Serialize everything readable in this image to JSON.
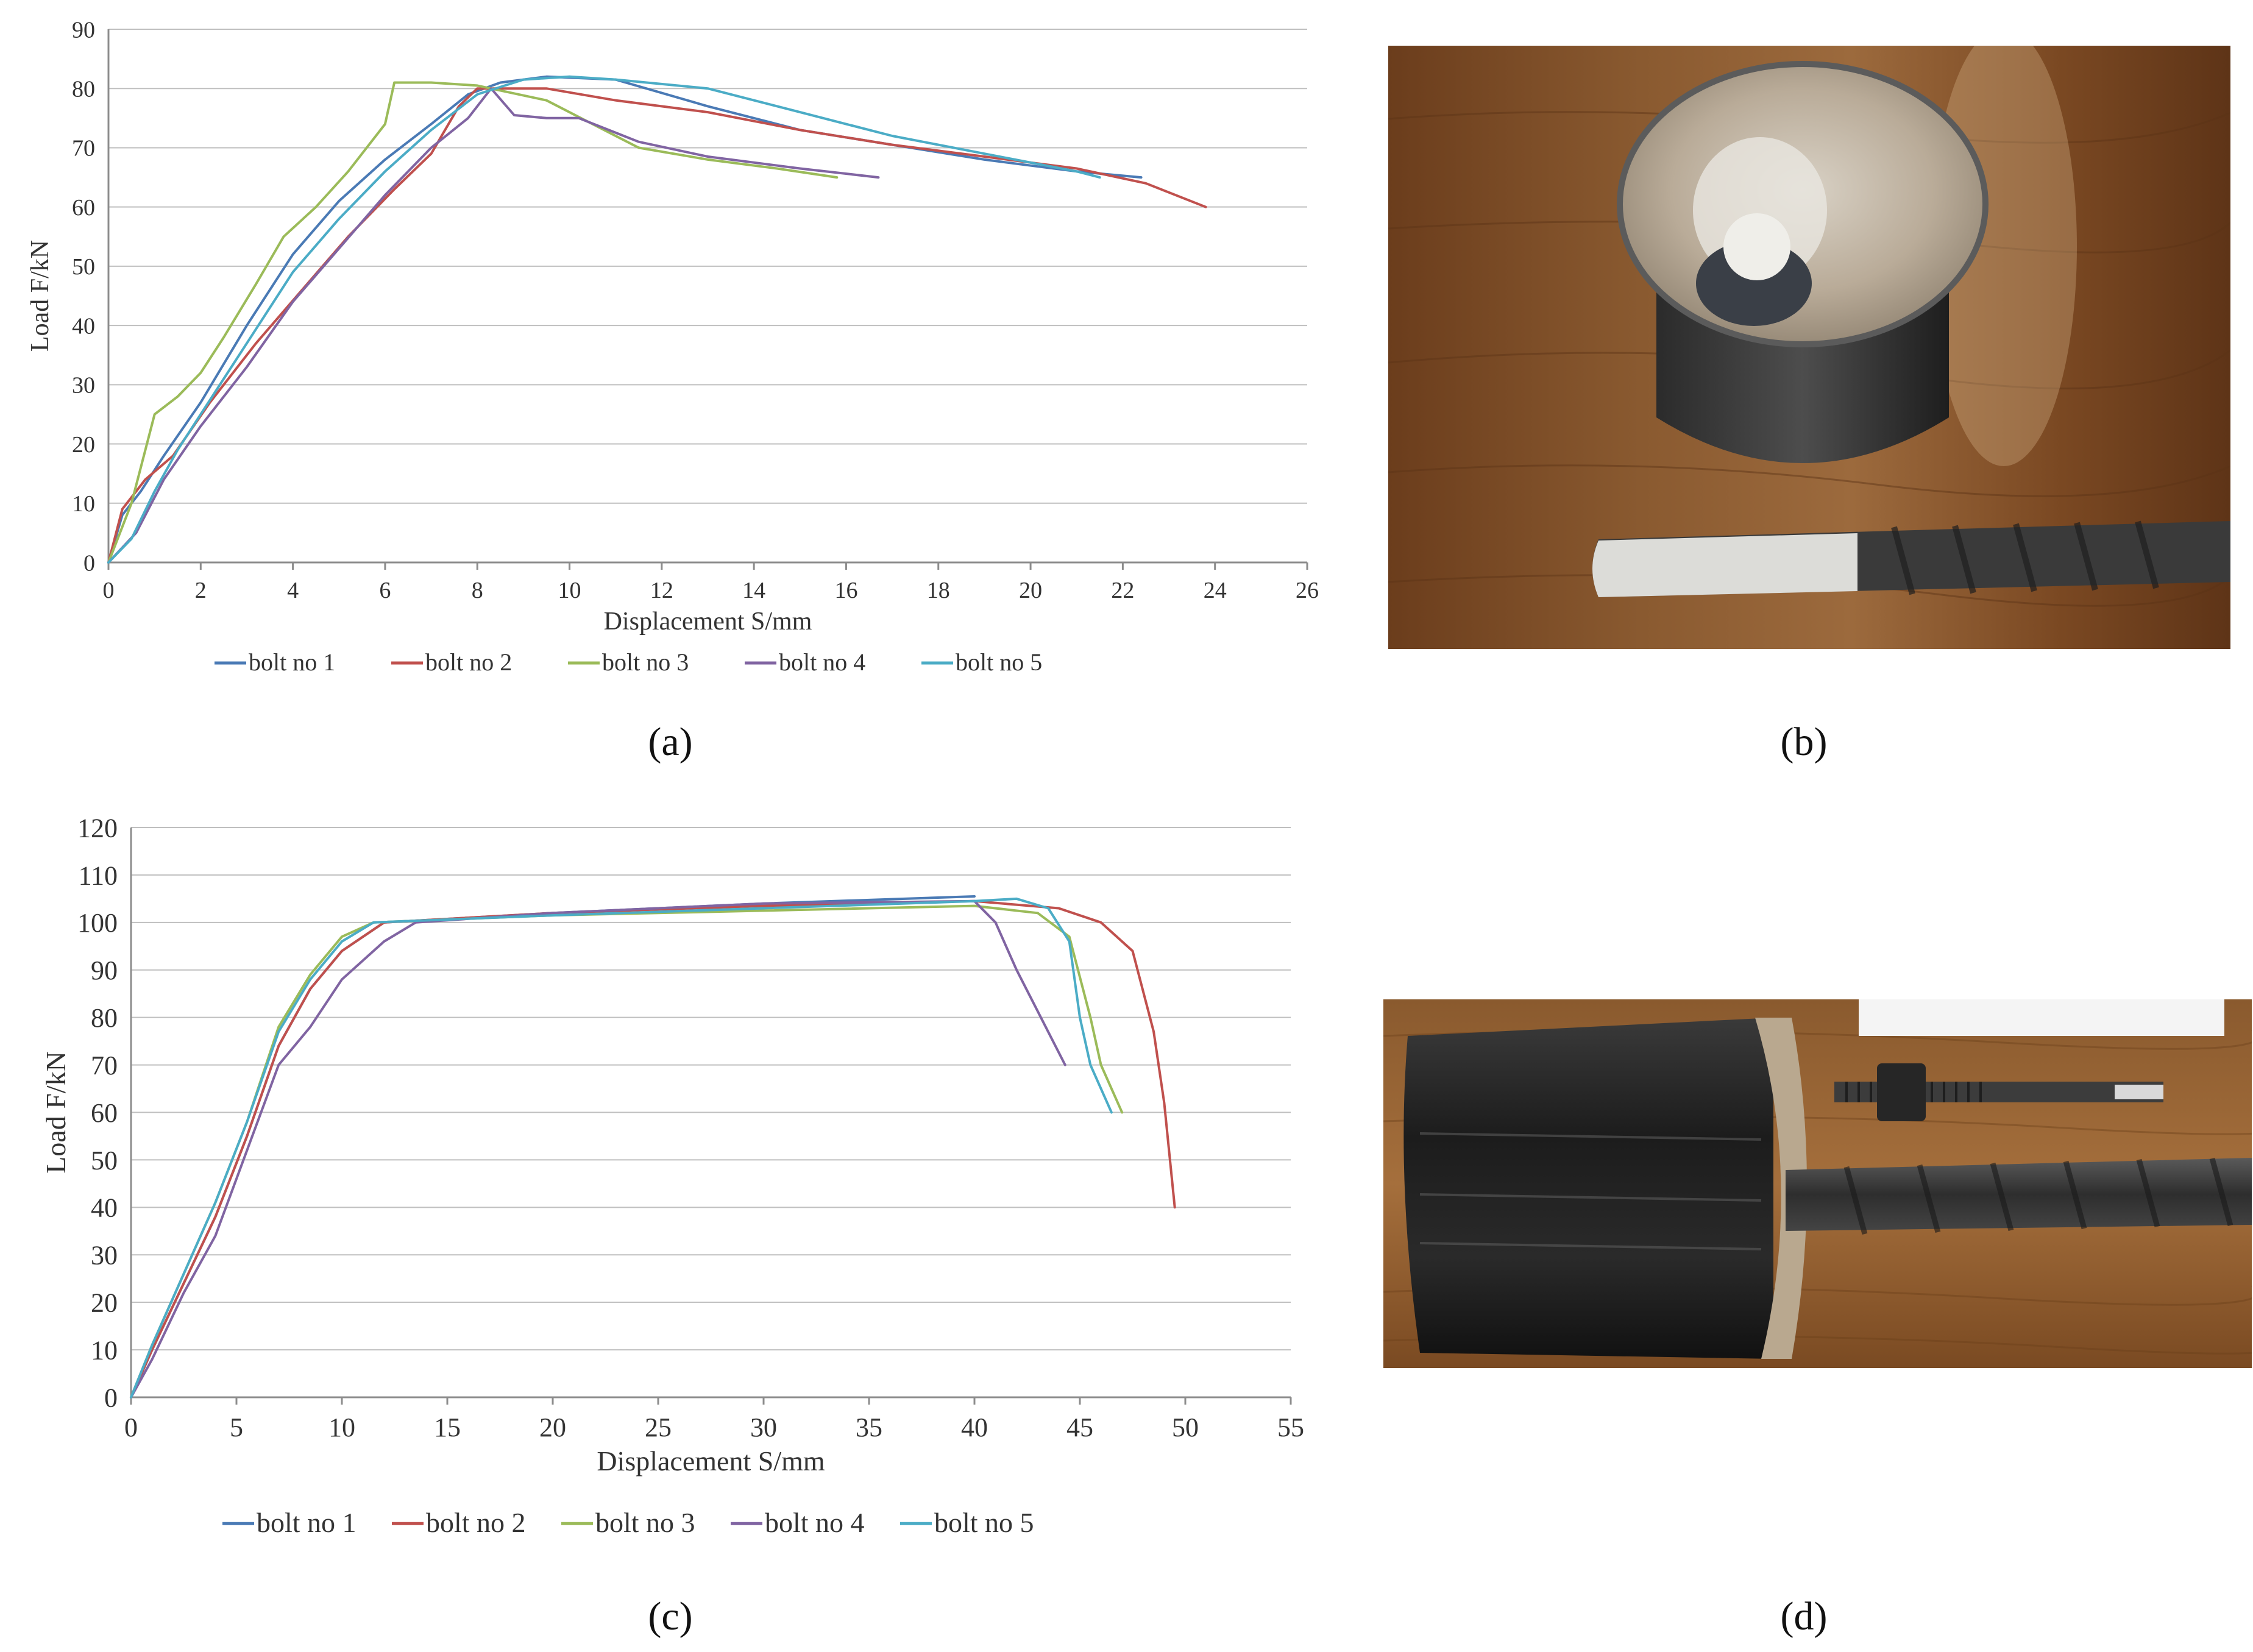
{
  "panels": {
    "a": "(a)",
    "b": "(b)",
    "c": "(c)",
    "d": "(d)"
  },
  "chart_data": [
    {
      "type": "line",
      "panel": "(a)",
      "xlabel": "Displacement S/mm",
      "ylabel": "Load F/kN",
      "xlim": [
        0,
        26
      ],
      "ylim": [
        0,
        90
      ],
      "xticks": [
        0,
        2,
        4,
        6,
        8,
        10,
        12,
        14,
        16,
        18,
        20,
        22,
        24,
        26
      ],
      "yticks": [
        0,
        10,
        20,
        30,
        40,
        50,
        60,
        70,
        80,
        90
      ],
      "grid": "horizontal",
      "legend": "bottom",
      "series": [
        {
          "name": "bolt no 1",
          "color": "#4a7ab5",
          "points": [
            [
              0,
              0
            ],
            [
              0.3,
              8
            ],
            [
              0.7,
              12
            ],
            [
              1.2,
              18
            ],
            [
              2,
              27
            ],
            [
              3,
              40
            ],
            [
              4,
              52
            ],
            [
              5,
              61
            ],
            [
              6,
              68
            ],
            [
              7,
              74
            ],
            [
              7.8,
              79
            ],
            [
              8.5,
              81
            ],
            [
              9.5,
              82
            ],
            [
              11,
              81.5
            ],
            [
              13,
              77
            ],
            [
              15,
              73
            ],
            [
              17,
              70.5
            ],
            [
              19,
              68
            ],
            [
              21,
              66
            ],
            [
              22.4,
              65
            ]
          ]
        },
        {
          "name": "bolt no 2",
          "color": "#c0504d",
          "points": [
            [
              0,
              0
            ],
            [
              0.3,
              9
            ],
            [
              0.8,
              14
            ],
            [
              1.4,
              18
            ],
            [
              2.2,
              27
            ],
            [
              3.2,
              37
            ],
            [
              4.2,
              46
            ],
            [
              5.2,
              55
            ],
            [
              6.2,
              63
            ],
            [
              7,
              69
            ],
            [
              7.6,
              77
            ],
            [
              8,
              80
            ],
            [
              9.5,
              80
            ],
            [
              11,
              78
            ],
            [
              13,
              76
            ],
            [
              15,
              73
            ],
            [
              17,
              70.5
            ],
            [
              19,
              68.5
            ],
            [
              21,
              66.5
            ],
            [
              22.5,
              64
            ],
            [
              23.8,
              60
            ]
          ]
        },
        {
          "name": "bolt no 3",
          "color": "#9bbb59",
          "points": [
            [
              0,
              0
            ],
            [
              0.5,
              10
            ],
            [
              1,
              25
            ],
            [
              1.5,
              28
            ],
            [
              2,
              32
            ],
            [
              2.5,
              38
            ],
            [
              3.2,
              47
            ],
            [
              3.8,
              55
            ],
            [
              4.5,
              60
            ],
            [
              5.2,
              66
            ],
            [
              6,
              74
            ],
            [
              6.2,
              81
            ],
            [
              7,
              81
            ],
            [
              8,
              80.5
            ],
            [
              9.5,
              78
            ],
            [
              10.5,
              74
            ],
            [
              11.5,
              70
            ],
            [
              13,
              68
            ],
            [
              14.5,
              66.5
            ],
            [
              15.8,
              65
            ]
          ]
        },
        {
          "name": "bolt no 4",
          "color": "#8064a2",
          "points": [
            [
              0,
              0
            ],
            [
              0.6,
              5
            ],
            [
              1.2,
              14
            ],
            [
              2,
              23
            ],
            [
              3,
              33
            ],
            [
              4,
              44
            ],
            [
              5,
              53
            ],
            [
              6,
              62
            ],
            [
              7,
              70
            ],
            [
              7.8,
              75
            ],
            [
              8.3,
              80
            ],
            [
              8.8,
              75.5
            ],
            [
              9.5,
              75
            ],
            [
              10.2,
              75
            ],
            [
              11.5,
              71
            ],
            [
              13,
              68.5
            ],
            [
              15,
              66.5
            ],
            [
              16.7,
              65
            ]
          ]
        },
        {
          "name": "bolt no 5",
          "color": "#4bacc6",
          "points": [
            [
              0,
              0
            ],
            [
              0.5,
              4
            ],
            [
              1,
              12
            ],
            [
              1.5,
              19
            ],
            [
              2,
              25
            ],
            [
              3,
              37
            ],
            [
              4,
              49
            ],
            [
              5,
              58
            ],
            [
              6,
              66
            ],
            [
              7,
              73
            ],
            [
              8,
              79
            ],
            [
              9,
              81.5
            ],
            [
              10,
              82
            ],
            [
              11,
              81.5
            ],
            [
              13,
              80
            ],
            [
              15,
              76
            ],
            [
              17,
              72
            ],
            [
              19,
              69
            ],
            [
              21,
              66
            ],
            [
              21.5,
              65
            ]
          ]
        }
      ]
    },
    {
      "type": "line",
      "panel": "(c)",
      "xlabel": "Displacement S/mm",
      "ylabel": "Load F/kN",
      "xlim": [
        0,
        55
      ],
      "ylim": [
        0,
        120
      ],
      "xticks": [
        0,
        5,
        10,
        15,
        20,
        25,
        30,
        35,
        40,
        45,
        50,
        55
      ],
      "yticks": [
        0,
        10,
        20,
        30,
        40,
        50,
        60,
        70,
        80,
        90,
        100,
        110,
        120
      ],
      "grid": "horizontal",
      "legend": "bottom",
      "series": [
        {
          "name": "bolt no 1",
          "color": "#4a7ab5",
          "points": [
            [
              0,
              0
            ],
            [
              1,
              10
            ],
            [
              2.5,
              24
            ],
            [
              4,
              38
            ],
            [
              5.5,
              55
            ],
            [
              7,
              74
            ],
            [
              8.5,
              86
            ],
            [
              10,
              94
            ],
            [
              12,
              100
            ],
            [
              20,
              102
            ],
            [
              30,
              104
            ],
            [
              40,
              105.5
            ]
          ]
        },
        {
          "name": "bolt no 2",
          "color": "#c0504d",
          "points": [
            [
              0,
              0
            ],
            [
              1,
              10
            ],
            [
              2.5,
              24
            ],
            [
              4,
              38
            ],
            [
              5.5,
              55
            ],
            [
              7,
              74
            ],
            [
              8.5,
              86
            ],
            [
              10,
              94
            ],
            [
              12,
              100
            ],
            [
              20,
              102
            ],
            [
              30,
              103.5
            ],
            [
              40,
              104.5
            ],
            [
              44,
              103
            ],
            [
              46,
              100
            ],
            [
              47.5,
              94
            ],
            [
              48.5,
              77
            ],
            [
              49,
              62
            ],
            [
              49.5,
              40
            ]
          ]
        },
        {
          "name": "bolt no 3",
          "color": "#9bbb59",
          "points": [
            [
              0,
              0
            ],
            [
              1,
              11
            ],
            [
              2.5,
              26
            ],
            [
              4,
              41
            ],
            [
              5.5,
              58
            ],
            [
              7,
              78
            ],
            [
              8.5,
              89
            ],
            [
              10,
              97
            ],
            [
              11.5,
              100
            ],
            [
              20,
              101.5
            ],
            [
              30,
              102.5
            ],
            [
              40,
              103.5
            ],
            [
              43,
              102
            ],
            [
              44.5,
              97
            ],
            [
              45.5,
              80
            ],
            [
              46,
              70
            ],
            [
              47,
              60
            ]
          ]
        },
        {
          "name": "bolt no 4",
          "color": "#8064a2",
          "points": [
            [
              0,
              0
            ],
            [
              1,
              8
            ],
            [
              2.5,
              22
            ],
            [
              4,
              34
            ],
            [
              5.5,
              52
            ],
            [
              6.5,
              64
            ],
            [
              7,
              70
            ],
            [
              8.5,
              78
            ],
            [
              10,
              88
            ],
            [
              12,
              96
            ],
            [
              13.5,
              100
            ],
            [
              20,
              102
            ],
            [
              30,
              104
            ],
            [
              40,
              104.5
            ],
            [
              41,
              100
            ],
            [
              42,
              90
            ],
            [
              44.3,
              70
            ]
          ]
        },
        {
          "name": "bolt no 5",
          "color": "#4bacc6",
          "points": [
            [
              0,
              0
            ],
            [
              1,
              11
            ],
            [
              2.5,
              26
            ],
            [
              4,
              41
            ],
            [
              5.5,
              58
            ],
            [
              7,
              77
            ],
            [
              8.5,
              88
            ],
            [
              10,
              96
            ],
            [
              11.5,
              100
            ],
            [
              20,
              101.5
            ],
            [
              30,
              103
            ],
            [
              40,
              104.5
            ],
            [
              42,
              105
            ],
            [
              43.5,
              103
            ],
            [
              44.5,
              96
            ],
            [
              45,
              80
            ],
            [
              45.5,
              70
            ],
            [
              46.5,
              60
            ]
          ]
        }
      ]
    }
  ],
  "photos": {
    "b": {
      "description_icon": "grouted-cylinder-top-photo"
    },
    "d": {
      "description_icon": "grouted-cylinder-side-photo"
    }
  }
}
